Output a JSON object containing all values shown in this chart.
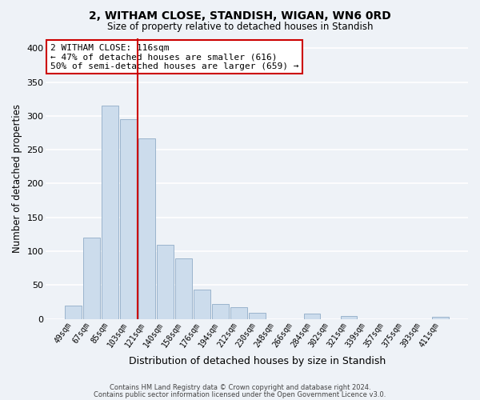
{
  "title": "2, WITHAM CLOSE, STANDISH, WIGAN, WN6 0RD",
  "subtitle": "Size of property relative to detached houses in Standish",
  "xlabel": "Distribution of detached houses by size in Standish",
  "ylabel": "Number of detached properties",
  "bar_labels": [
    "49sqm",
    "67sqm",
    "85sqm",
    "103sqm",
    "121sqm",
    "140sqm",
    "158sqm",
    "176sqm",
    "194sqm",
    "212sqm",
    "230sqm",
    "248sqm",
    "266sqm",
    "284sqm",
    "302sqm",
    "321sqm",
    "339sqm",
    "357sqm",
    "375sqm",
    "393sqm",
    "411sqm"
  ],
  "bar_heights": [
    20,
    120,
    315,
    295,
    267,
    110,
    90,
    43,
    22,
    17,
    9,
    0,
    0,
    8,
    0,
    5,
    0,
    0,
    0,
    0,
    3
  ],
  "bar_color": "#ccdcec",
  "bar_edge_color": "#9ab4cc",
  "vline_x": 3.5,
  "vline_color": "#cc0000",
  "annotation_text": "2 WITHAM CLOSE: 116sqm\n← 47% of detached houses are smaller (616)\n50% of semi-detached houses are larger (659) →",
  "annotation_box_color": "white",
  "annotation_box_edge": "#cc0000",
  "ylim": [
    0,
    415
  ],
  "yticks": [
    0,
    50,
    100,
    150,
    200,
    250,
    300,
    350,
    400
  ],
  "footer_line1": "Contains HM Land Registry data © Crown copyright and database right 2024.",
  "footer_line2": "Contains public sector information licensed under the Open Government Licence v3.0.",
  "background_color": "#eef2f7",
  "grid_color": "white"
}
